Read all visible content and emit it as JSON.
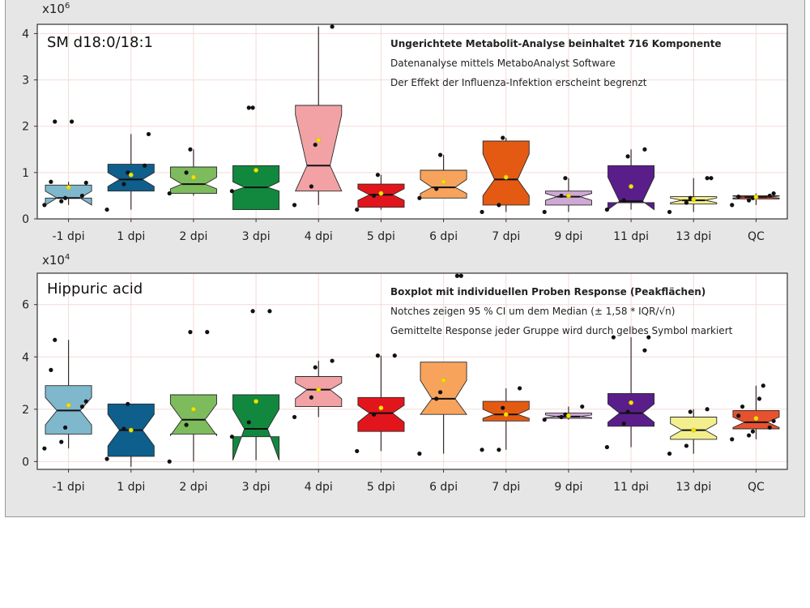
{
  "chart_data": [
    {
      "type": "boxplot",
      "notched": true,
      "title": "SM d18:0/18:1",
      "y_multiplier": "x10",
      "y_exponent": "6",
      "ylim": [
        0,
        4.2
      ],
      "y_ticks": [
        0,
        1,
        2,
        3,
        4
      ],
      "grid": true,
      "annotations": [
        "Ungerichtete Metabolit-Analyse beinhaltet 716 Komponente",
        "Datenanalyse mittels MetaboAnalyst Software",
        "Der Effekt der Influenza-Infektion erscheint begrenzt"
      ],
      "categories": [
        "-1 dpi",
        "1 dpi",
        "2 dpi",
        "3 dpi",
        "4 dpi",
        "5 dpi",
        "6 dpi",
        "7 dpi",
        "9 dpi",
        "11 dpi",
        "13 dpi",
        "QC"
      ],
      "colors": [
        "#7fb7cd",
        "#0e5f8c",
        "#7dbb5c",
        "#11883e",
        "#f2a2a5",
        "#e3151c",
        "#f7a35c",
        "#e55a12",
        "#cfa9d6",
        "#5a1e8b",
        "#f3ef8f",
        "#e8512e"
      ],
      "boxes": [
        {
          "q1": 0.45,
          "median": 0.45,
          "q3": 0.73,
          "whisker_low": 0.3,
          "whisker_high": 0.8,
          "notch_low": 0.3,
          "notch_high": 0.6,
          "mean": 0.68,
          "points": [
            0.3,
            0.38,
            0.45,
            0.5,
            0.78,
            0.8,
            2.1,
            2.1
          ]
        },
        {
          "q1": 0.6,
          "median": 0.85,
          "q3": 1.18,
          "whisker_low": 0.2,
          "whisker_high": 1.83,
          "notch_low": 0.7,
          "notch_high": 1.0,
          "mean": 0.95,
          "points": [
            0.2,
            0.75,
            1.0,
            1.15,
            1.83
          ]
        },
        {
          "q1": 0.55,
          "median": 0.75,
          "q3": 1.12,
          "whisker_low": 0.5,
          "whisker_high": 1.5,
          "notch_low": 0.65,
          "notch_high": 0.9,
          "mean": 0.9,
          "points": [
            0.55,
            1.0,
            1.5
          ]
        },
        {
          "q1": 0.2,
          "median": 0.68,
          "q3": 1.15,
          "whisker_low": 0.2,
          "whisker_high": 1.15,
          "notch_low": 0.6,
          "notch_high": 0.8,
          "mean": 1.05,
          "points": [
            0.6,
            2.4,
            2.4
          ]
        },
        {
          "q1": 0.6,
          "median": 1.15,
          "q3": 2.45,
          "whisker_low": 0.3,
          "whisker_high": 4.15,
          "notch_low": 0.6,
          "notch_high": 2.25,
          "mean": 1.7,
          "points": [
            0.3,
            0.7,
            1.6,
            4.15
          ]
        },
        {
          "q1": 0.25,
          "median": 0.52,
          "q3": 0.75,
          "whisker_low": 0.2,
          "whisker_high": 0.95,
          "notch_low": 0.4,
          "notch_high": 0.65,
          "mean": 0.55,
          "points": [
            0.2,
            0.5,
            0.95
          ]
        },
        {
          "q1": 0.45,
          "median": 0.68,
          "q3": 1.05,
          "whisker_low": 0.45,
          "whisker_high": 1.38,
          "notch_low": 0.55,
          "notch_high": 0.85,
          "mean": 0.8,
          "points": [
            0.45,
            0.65,
            1.38
          ]
        },
        {
          "q1": 0.3,
          "median": 0.85,
          "q3": 1.68,
          "whisker_low": 0.15,
          "whisker_high": 1.75,
          "notch_low": 0.5,
          "notch_high": 1.4,
          "mean": 0.9,
          "points": [
            0.15,
            0.3,
            1.75
          ]
        },
        {
          "q1": 0.3,
          "median": 0.48,
          "q3": 0.6,
          "whisker_low": 0.15,
          "whisker_high": 0.88,
          "notch_low": 0.4,
          "notch_high": 0.55,
          "mean": 0.5,
          "points": [
            0.15,
            0.5,
            0.88
          ]
        },
        {
          "q1": 0.35,
          "median": 0.38,
          "q3": 1.15,
          "whisker_low": 0.2,
          "whisker_high": 1.5,
          "notch_low": 0.2,
          "notch_high": 0.9,
          "mean": 0.7,
          "points": [
            0.2,
            0.4,
            1.35,
            1.5
          ]
        },
        {
          "q1": 0.32,
          "median": 0.4,
          "q3": 0.48,
          "whisker_low": 0.15,
          "whisker_high": 0.88,
          "notch_low": 0.35,
          "notch_high": 0.45,
          "mean": 0.42,
          "points": [
            0.15,
            0.35,
            0.45,
            0.88,
            0.88
          ]
        },
        {
          "q1": 0.43,
          "median": 0.47,
          "q3": 0.5,
          "whisker_low": 0.3,
          "whisker_high": 0.55,
          "notch_low": 0.45,
          "notch_high": 0.49,
          "mean": 0.47,
          "points": [
            0.3,
            0.4,
            0.45,
            0.5,
            0.55,
            0.48
          ]
        }
      ]
    },
    {
      "type": "boxplot",
      "notched": true,
      "title": "Hippuric acid",
      "y_multiplier": "x10",
      "y_exponent": "4",
      "ylim": [
        -0.3,
        7.2
      ],
      "y_ticks": [
        0,
        2,
        4,
        6
      ],
      "grid": true,
      "annotations": [
        "Boxplot mit individuellen Proben Response (Peakflächen)",
        "Notches zeigen 95 % CI um dem Median (± 1,58 * IQR/√n)",
        "Gemittelte Response jeder Gruppe wird durch gelbes Symbol markiert"
      ],
      "categories": [
        "-1 dpi",
        "1 dpi",
        "2 dpi",
        "3 dpi",
        "4 dpi",
        "5 dpi",
        "6 dpi",
        "7 dpi",
        "9 dpi",
        "11 dpi",
        "13 dpi",
        "QC"
      ],
      "colors": [
        "#7fb7cd",
        "#0e5f8c",
        "#7dbb5c",
        "#11883e",
        "#f2a2a5",
        "#e3151c",
        "#f7a35c",
        "#e55a12",
        "#cfa9d6",
        "#5a1e8b",
        "#f3ef8f",
        "#e8512e"
      ],
      "boxes": [
        {
          "q1": 1.05,
          "median": 1.95,
          "q3": 2.9,
          "whisker_low": 0.5,
          "whisker_high": 4.65,
          "notch_low": 1.4,
          "notch_high": 2.45,
          "mean": 2.15,
          "points": [
            0.5,
            0.75,
            1.3,
            2.1,
            2.3,
            3.5,
            4.65
          ]
        },
        {
          "q1": 0.2,
          "median": 1.2,
          "q3": 2.2,
          "whisker_low": -0.2,
          "whisker_high": 2.2,
          "notch_low": 0.6,
          "notch_high": 1.8,
          "mean": 1.2,
          "points": [
            0.1,
            1.25,
            2.2
          ]
        },
        {
          "q1": 1.05,
          "median": 1.6,
          "q3": 2.55,
          "whisker_low": 0.0,
          "whisker_high": 2.55,
          "notch_low": 1.0,
          "notch_high": 2.2,
          "mean": 2.0,
          "points": [
            0.0,
            1.4,
            4.95,
            4.95
          ]
        },
        {
          "q1": 0.95,
          "median": 1.25,
          "q3": 2.55,
          "whisker_low": 0.05,
          "whisker_high": 2.55,
          "notch_low": 0.05,
          "notch_high": 2.0,
          "mean": 2.3,
          "points": [
            0.95,
            1.5,
            5.75,
            5.75
          ]
        },
        {
          "q1": 2.1,
          "median": 2.75,
          "q3": 3.25,
          "whisker_low": 1.7,
          "whisker_high": 3.85,
          "notch_low": 2.4,
          "notch_high": 3.0,
          "mean": 2.75,
          "points": [
            1.7,
            2.45,
            3.6,
            3.85
          ]
        },
        {
          "q1": 1.15,
          "median": 1.85,
          "q3": 2.45,
          "whisker_low": 0.4,
          "whisker_high": 4.05,
          "notch_low": 1.5,
          "notch_high": 2.15,
          "mean": 2.05,
          "points": [
            0.4,
            1.8,
            4.05,
            4.05
          ]
        },
        {
          "q1": 1.8,
          "median": 2.4,
          "q3": 3.8,
          "whisker_low": 0.3,
          "whisker_high": 3.8,
          "notch_low": 1.8,
          "notch_high": 3.1,
          "mean": 3.1,
          "points": [
            0.3,
            2.4,
            2.65,
            7.1,
            7.1
          ]
        },
        {
          "q1": 1.55,
          "median": 1.8,
          "q3": 2.3,
          "whisker_low": 0.45,
          "whisker_high": 2.8,
          "notch_low": 1.65,
          "notch_high": 2.0,
          "mean": 1.8,
          "points": [
            0.45,
            0.45,
            2.05,
            2.8
          ]
        },
        {
          "q1": 1.65,
          "median": 1.72,
          "q3": 1.85,
          "whisker_low": 1.6,
          "whisker_high": 2.1,
          "notch_low": 1.68,
          "notch_high": 1.78,
          "mean": 1.75,
          "points": [
            1.6,
            1.7,
            1.8,
            2.1
          ]
        },
        {
          "q1": 1.35,
          "median": 1.85,
          "q3": 2.6,
          "whisker_low": 0.55,
          "whisker_high": 4.75,
          "notch_low": 1.5,
          "notch_high": 2.2,
          "mean": 2.25,
          "points": [
            0.55,
            1.45,
            1.9,
            4.25,
            4.75,
            4.75
          ]
        },
        {
          "q1": 0.85,
          "median": 1.2,
          "q3": 1.7,
          "whisker_low": 0.3,
          "whisker_high": 2.0,
          "notch_low": 0.95,
          "notch_high": 1.45,
          "mean": 1.2,
          "points": [
            0.3,
            0.6,
            1.9,
            2.0
          ]
        },
        {
          "q1": 1.25,
          "median": 1.5,
          "q3": 1.95,
          "whisker_low": 0.85,
          "whisker_high": 2.9,
          "notch_low": 1.3,
          "notch_high": 1.7,
          "mean": 1.65,
          "points": [
            0.85,
            1.0,
            1.15,
            1.3,
            1.55,
            1.75,
            2.1,
            2.4,
            2.9
          ]
        }
      ]
    }
  ]
}
